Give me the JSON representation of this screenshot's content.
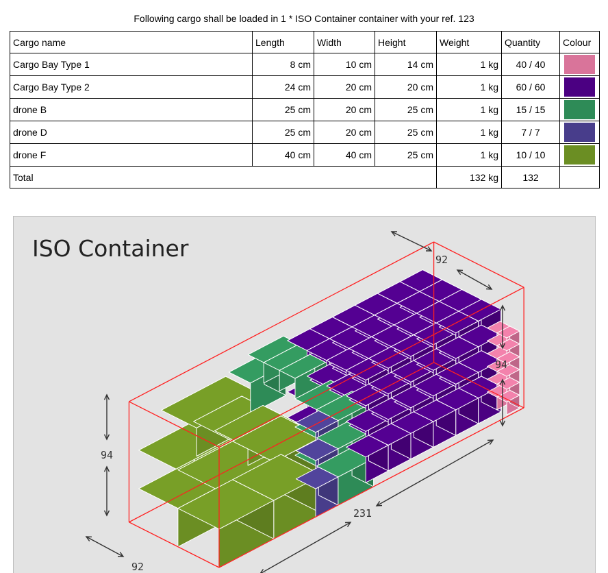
{
  "heading": "Following cargo shall be loaded in 1 * ISO Container container with your ref. 123",
  "table": {
    "headers": {
      "name": "Cargo name",
      "length": "Length",
      "width": "Width",
      "height": "Height",
      "weight": "Weight",
      "quantity": "Quantity",
      "colour": "Colour"
    },
    "rows": [
      {
        "name": "Cargo Bay Type 1",
        "length": "8 cm",
        "width": "10 cm",
        "height": "14 cm",
        "weight": "1 kg",
        "quantity": "40 / 40",
        "color": "#d9749a"
      },
      {
        "name": "Cargo Bay Type 2",
        "length": "24 cm",
        "width": "20 cm",
        "height": "20 cm",
        "weight": "1 kg",
        "quantity": "60 / 60",
        "color": "#4b0082"
      },
      {
        "name": "drone B",
        "length": "25 cm",
        "width": "20 cm",
        "height": "25 cm",
        "weight": "1 kg",
        "quantity": "15 / 15",
        "color": "#2e8b57"
      },
      {
        "name": "drone D",
        "length": "25 cm",
        "width": "20 cm",
        "height": "25 cm",
        "weight": "1 kg",
        "quantity": "7 / 7",
        "color": "#483d8b"
      },
      {
        "name": "drone F",
        "length": "40 cm",
        "width": "40 cm",
        "height": "25 cm",
        "weight": "1 kg",
        "quantity": "10 / 10",
        "color": "#6b8e23"
      }
    ],
    "total": {
      "label": "Total",
      "weight": "132 kg",
      "quantity": "132"
    }
  },
  "diagram": {
    "title": "ISO Container",
    "dims": {
      "depth_top": "92",
      "height_right": "94",
      "height_left": "94",
      "length": "231",
      "depth_bottom": "92"
    },
    "frame_color": "#ff2020"
  }
}
